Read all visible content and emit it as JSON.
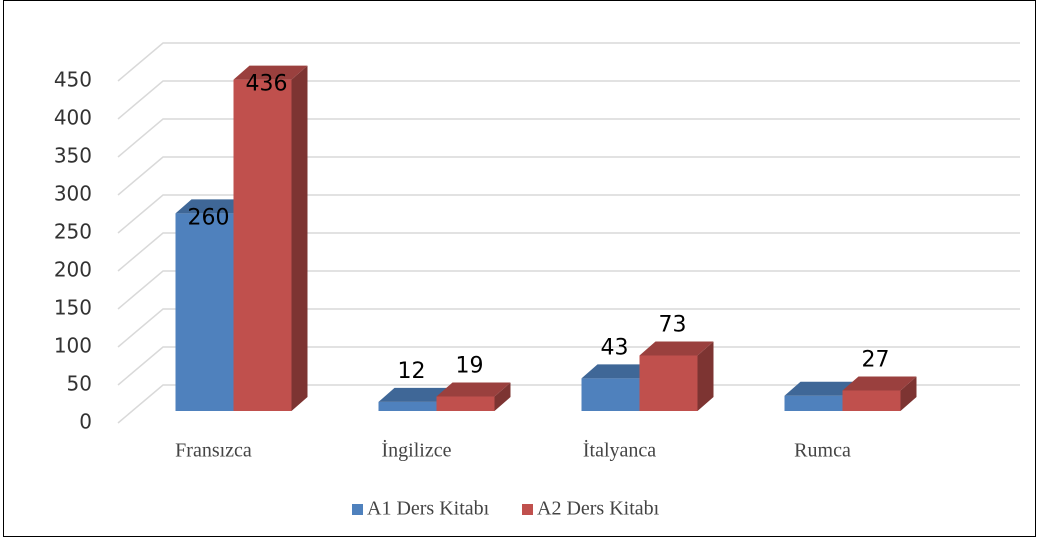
{
  "chart_data": {
    "type": "bar3d",
    "categories": [
      "Fransızca",
      "İngilizce",
      "İtalyanca",
      "Rumca"
    ],
    "series": [
      {
        "name": "A1 Ders Kitabı",
        "color": "#4f81bd",
        "values": [
          260,
          12,
          43,
          20
        ],
        "value_labels": [
          "260",
          "12",
          "43",
          null
        ]
      },
      {
        "name": "A2 Ders Kitabı",
        "color": "#c0504d",
        "values": [
          436,
          19,
          73,
          27
        ],
        "value_labels": [
          "436",
          "19",
          "73",
          "27"
        ]
      }
    ],
    "ylim": [
      0,
      450
    ],
    "yticks": [
      0,
      50,
      100,
      150,
      200,
      250,
      300,
      350,
      400,
      450
    ],
    "grid": true,
    "legend": "bottom"
  }
}
